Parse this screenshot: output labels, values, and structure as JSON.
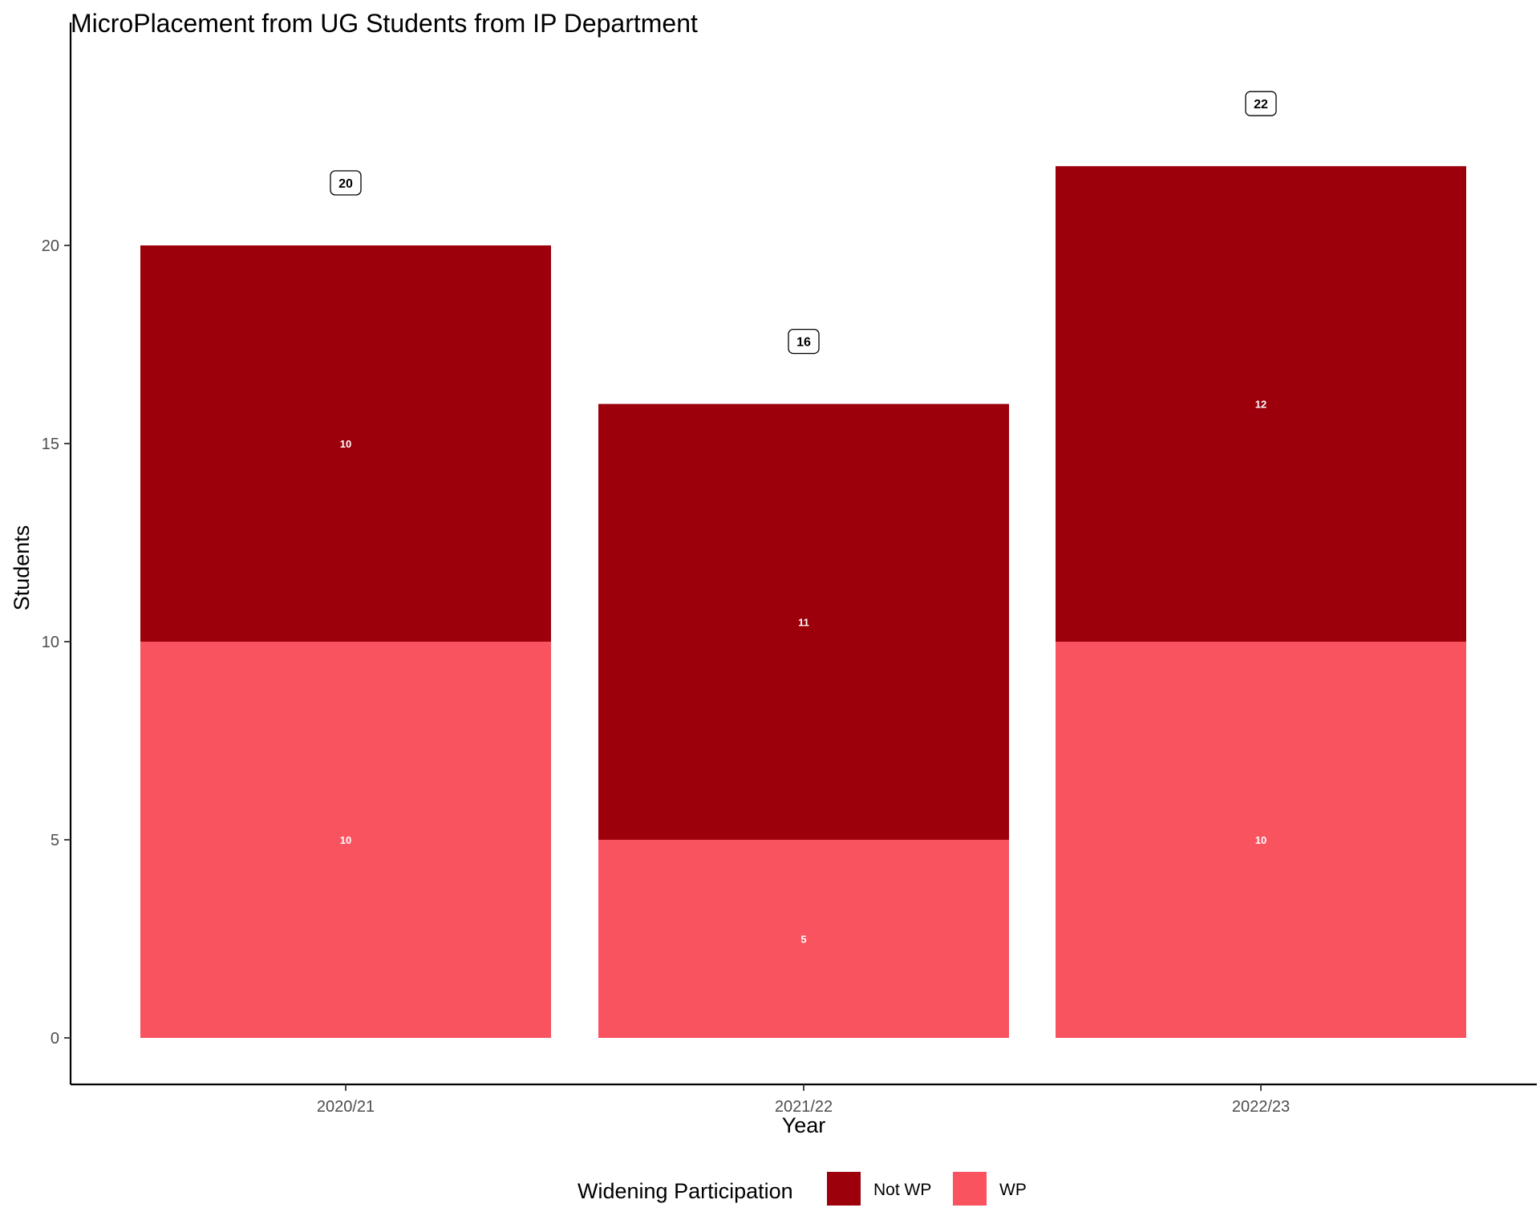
{
  "chart_data": {
    "type": "bar",
    "stacked": true,
    "title": "MicroPlacement from UG Students from IP Department",
    "xlabel": "Year",
    "ylabel": "Students",
    "categories": [
      "2020/21",
      "2021/22",
      "2022/23"
    ],
    "series": [
      {
        "name": "WP",
        "values": [
          10,
          5,
          10
        ],
        "color": "#f8535f"
      },
      {
        "name": "Not WP",
        "values": [
          10,
          11,
          12
        ],
        "color": "#9b000b"
      }
    ],
    "totals": [
      20,
      16,
      22
    ],
    "ylim": [
      0,
      24
    ],
    "yticks": [
      0,
      5,
      10,
      15,
      20
    ],
    "grid": false,
    "legend": {
      "title": "Widening Participation",
      "position": "bottom",
      "entries": [
        {
          "label": "Not WP",
          "color": "#9b000b"
        },
        {
          "label": "WP",
          "color": "#f8535f"
        }
      ]
    }
  }
}
